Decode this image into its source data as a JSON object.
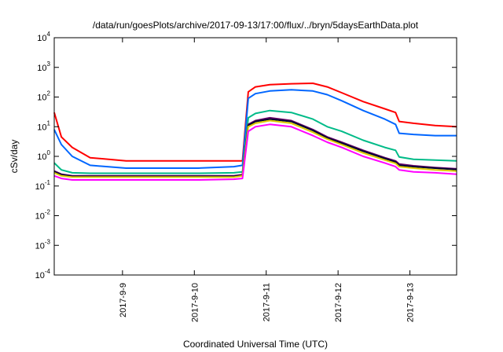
{
  "chart_data": {
    "type": "line",
    "title": "/data/run/goesPlots/archive/2017-09-13/17:00/flux/../bryn/5daysEarthData.plot",
    "xlabel": "Coordinated Universal Time (UTC)",
    "ylabel": "cSv/day",
    "yscale": "log",
    "ylim": [
      0.0001,
      10000
    ],
    "xlim": [
      0,
      5.6
    ],
    "grid": false,
    "y_ticks": [
      {
        "base": "10",
        "exp": "-4",
        "value": 0.0001
      },
      {
        "base": "10",
        "exp": "-3",
        "value": 0.001
      },
      {
        "base": "10",
        "exp": "-2",
        "value": 0.01
      },
      {
        "base": "10",
        "exp": "-1",
        "value": 0.1
      },
      {
        "base": "10",
        "exp": "0",
        "value": 1
      },
      {
        "base": "10",
        "exp": "1",
        "value": 10
      },
      {
        "base": "10",
        "exp": "2",
        "value": 100
      },
      {
        "base": "10",
        "exp": "3",
        "value": 1000
      },
      {
        "base": "10",
        "exp": "4",
        "value": 10000
      }
    ],
    "x_ticks": [
      {
        "label": "2017-9-9",
        "value": 0.95
      },
      {
        "label": "2017-9-10",
        "value": 1.95
      },
      {
        "label": "2017-9-11",
        "value": 2.95
      },
      {
        "label": "2017-9-12",
        "value": 3.95
      },
      {
        "label": "2017-9-13",
        "value": 4.95
      }
    ],
    "series": [
      {
        "color": "#ff0000",
        "x": [
          0,
          0.1,
          0.25,
          0.5,
          1.0,
          1.5,
          2.0,
          2.5,
          2.62,
          2.7,
          2.8,
          3.0,
          3.3,
          3.6,
          3.8,
          4.0,
          4.3,
          4.6,
          4.75,
          4.8,
          5.0,
          5.3,
          5.6
        ],
        "values": [
          30,
          4.5,
          2.0,
          0.9,
          0.7,
          0.7,
          0.7,
          0.7,
          0.7,
          150,
          220,
          260,
          280,
          290,
          220,
          140,
          70,
          40,
          30,
          15,
          13,
          11,
          10
        ]
      },
      {
        "color": "#0066ff",
        "x": [
          0,
          0.1,
          0.25,
          0.5,
          1.0,
          1.5,
          2.0,
          2.5,
          2.62,
          2.7,
          2.8,
          3.0,
          3.3,
          3.6,
          3.8,
          4.0,
          4.3,
          4.6,
          4.75,
          4.8,
          5.0,
          5.3,
          5.6
        ],
        "values": [
          8,
          2.5,
          1.0,
          0.5,
          0.4,
          0.4,
          0.4,
          0.45,
          0.5,
          90,
          130,
          160,
          175,
          160,
          120,
          75,
          35,
          18,
          12,
          6,
          5.5,
          5,
          5
        ]
      },
      {
        "color": "#00bb88",
        "x": [
          0,
          0.1,
          0.25,
          0.5,
          1.0,
          1.5,
          2.0,
          2.5,
          2.62,
          2.7,
          2.8,
          3.0,
          3.3,
          3.6,
          3.8,
          4.0,
          4.3,
          4.6,
          4.75,
          4.8,
          5.0,
          5.3,
          5.6
        ],
        "values": [
          0.6,
          0.35,
          0.28,
          0.27,
          0.27,
          0.27,
          0.27,
          0.28,
          0.3,
          20,
          28,
          35,
          30,
          18,
          10,
          7,
          3.5,
          2,
          1.6,
          0.95,
          0.8,
          0.75,
          0.7
        ]
      },
      {
        "color": "#660066",
        "x": [
          0,
          0.1,
          0.25,
          0.5,
          1.0,
          1.5,
          2.0,
          2.5,
          2.62,
          2.7,
          2.8,
          3.0,
          3.3,
          3.6,
          3.8,
          4.0,
          4.3,
          4.6,
          4.75,
          4.8,
          5.0,
          5.3,
          5.6
        ],
        "values": [
          0.32,
          0.25,
          0.22,
          0.22,
          0.22,
          0.22,
          0.22,
          0.22,
          0.24,
          12,
          16,
          20,
          16,
          8,
          4.5,
          3,
          1.6,
          0.9,
          0.7,
          0.55,
          0.48,
          0.42,
          0.38
        ]
      },
      {
        "color": "#000033",
        "x": [
          0,
          0.1,
          0.25,
          0.5,
          1.0,
          1.5,
          2.0,
          2.5,
          2.62,
          2.7,
          2.8,
          3.0,
          3.3,
          3.6,
          3.8,
          4.0,
          4.3,
          4.6,
          4.75,
          4.8,
          5.0,
          5.3,
          5.6
        ],
        "values": [
          0.3,
          0.24,
          0.21,
          0.21,
          0.21,
          0.21,
          0.21,
          0.21,
          0.23,
          11,
          15,
          18,
          15,
          7.5,
          4.2,
          2.8,
          1.5,
          0.85,
          0.65,
          0.5,
          0.45,
          0.4,
          0.36
        ]
      },
      {
        "color": "#ddcc00",
        "x": [
          0,
          0.1,
          0.25,
          0.5,
          1.0,
          1.5,
          2.0,
          2.5,
          2.62,
          2.7,
          2.8,
          3.0,
          3.3,
          3.6,
          3.8,
          4.0,
          4.3,
          4.6,
          4.75,
          4.8,
          5.0,
          5.3,
          5.6
        ],
        "values": [
          0.28,
          0.22,
          0.2,
          0.2,
          0.2,
          0.2,
          0.2,
          0.2,
          0.22,
          10,
          13,
          16,
          13,
          6.5,
          3.8,
          2.5,
          1.3,
          0.75,
          0.58,
          0.45,
          0.4,
          0.35,
          0.32
        ]
      },
      {
        "color": "#ff00ff",
        "x": [
          0,
          0.1,
          0.25,
          0.5,
          1.0,
          1.5,
          2.0,
          2.5,
          2.62,
          2.7,
          2.8,
          3.0,
          3.3,
          3.6,
          3.8,
          4.0,
          4.3,
          4.6,
          4.75,
          4.8,
          5.0,
          5.3,
          5.6
        ],
        "values": [
          0.22,
          0.18,
          0.16,
          0.16,
          0.16,
          0.16,
          0.16,
          0.17,
          0.18,
          7,
          10,
          12,
          10,
          5,
          3,
          2,
          1,
          0.6,
          0.45,
          0.35,
          0.3,
          0.28,
          0.25
        ]
      }
    ]
  }
}
